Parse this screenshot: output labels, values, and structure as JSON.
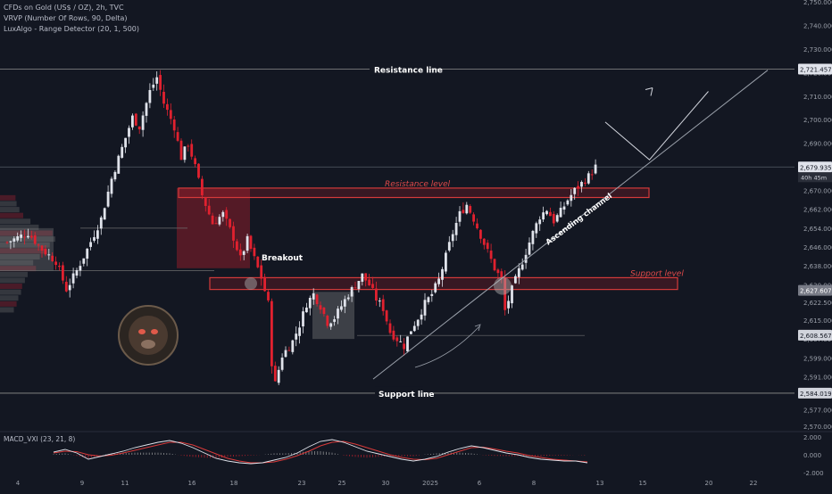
{
  "header": {
    "title": "CFDs on Gold (US$ / OZ), 2h, TVC",
    "indicator_1": "VRVP (Number Of Rows, 90, Delta)",
    "indicator_2": "LuxAlgo - Range Detector (20, 1, 500)"
  },
  "colors": {
    "background": "#131722",
    "up": "#e0e3eb",
    "down": "#e1212f",
    "level_line": "#8f8f8f",
    "red_label": "#e04a4a",
    "price_tag": "#e0e3eb",
    "macd_line": "#e0e3eb",
    "signal_line": "#d93a3a"
  },
  "annotations": {
    "resistance_line": "Resistance line",
    "support_line": "Support line",
    "resistance_level": "Resistance level",
    "support_level": "Support level",
    "breakout": "Breakout",
    "ascending_channel": "Ascending channel"
  },
  "price_tags": {
    "resistance": "2,721.457",
    "current": "2,679.935",
    "countdown": "40h 45m",
    "support_top": "2,627.607",
    "range_low": "2,608.567",
    "support_bottom": "2,584.019"
  },
  "macd": {
    "label": "MACD_VXI (23, 21, 8)",
    "ticks": [
      "2.000",
      "0.000",
      "-2.000"
    ]
  },
  "chart_data": {
    "type": "candlestick",
    "title": "CFDs on Gold (US$ / OZ), 2h, TVC",
    "x_tick_labels": [
      "4",
      "9",
      "11",
      "16",
      "18",
      "23",
      "25",
      "30",
      "2025",
      "6",
      "8",
      "13",
      "15",
      "20",
      "22"
    ],
    "y_tick_labels": [
      "2,750.000",
      "2,740.000",
      "2,730.000",
      "2,720.000",
      "2,710.000",
      "2,700.000",
      "2,690.000",
      "2,680.000",
      "2,670.000",
      "2,662.000",
      "2,654.000",
      "2,646.000",
      "2,638.000",
      "2,630.000",
      "2,622.500",
      "2,615.000",
      "2,607.000",
      "2,599.000",
      "2,591.000",
      "2,584.000",
      "2,577.000",
      "2,570.000"
    ],
    "levels": {
      "resistance_line": 2721.457,
      "resistance_level": [
        2667,
        2671
      ],
      "support_level": [
        2628,
        2633
      ],
      "support_line": 2584.019,
      "current_price": 2679.935
    },
    "close_path": [
      [
        0,
        2648
      ],
      [
        6,
        2652
      ],
      [
        10,
        2645
      ],
      [
        14,
        2640
      ],
      [
        17,
        2628
      ],
      [
        20,
        2636
      ],
      [
        23,
        2645
      ],
      [
        27,
        2658
      ],
      [
        30,
        2675
      ],
      [
        33,
        2688
      ],
      [
        36,
        2701
      ],
      [
        38,
        2697
      ],
      [
        41,
        2712
      ],
      [
        43,
        2718
      ],
      [
        45,
        2707
      ],
      [
        48,
        2697
      ],
      [
        50,
        2684
      ],
      [
        52,
        2690
      ],
      [
        54,
        2680
      ],
      [
        56,
        2668
      ],
      [
        59,
        2656
      ],
      [
        62,
        2660
      ],
      [
        65,
        2650
      ],
      [
        67,
        2641
      ],
      [
        69,
        2649
      ],
      [
        71,
        2641
      ],
      [
        73,
        2633
      ],
      [
        75,
        2622
      ],
      [
        76,
        2597
      ],
      [
        77,
        2588
      ],
      [
        79,
        2600
      ],
      [
        82,
        2606
      ],
      [
        84,
        2613
      ],
      [
        86,
        2622
      ],
      [
        88,
        2626
      ],
      [
        90,
        2621
      ],
      [
        92,
        2614
      ],
      [
        94,
        2616
      ],
      [
        96,
        2621
      ],
      [
        98,
        2626
      ],
      [
        100,
        2630
      ],
      [
        102,
        2634
      ],
      [
        104,
        2630
      ],
      [
        106,
        2624
      ],
      [
        108,
        2620
      ],
      [
        110,
        2610
      ],
      [
        112,
        2607
      ],
      [
        114,
        2604
      ],
      [
        116,
        2611
      ],
      [
        118,
        2616
      ],
      [
        120,
        2622
      ],
      [
        122,
        2626
      ],
      [
        124,
        2632
      ],
      [
        126,
        2642
      ],
      [
        128,
        2652
      ],
      [
        130,
        2660
      ],
      [
        132,
        2664
      ],
      [
        134,
        2658
      ],
      [
        136,
        2651
      ],
      [
        138,
        2644
      ],
      [
        140,
        2637
      ],
      [
        142,
        2632
      ],
      [
        143,
        2619
      ],
      [
        145,
        2628
      ],
      [
        147,
        2636
      ],
      [
        149,
        2644
      ],
      [
        151,
        2652
      ],
      [
        153,
        2659
      ],
      [
        155,
        2662
      ],
      [
        157,
        2657
      ],
      [
        159,
        2661
      ],
      [
        161,
        2666
      ],
      [
        163,
        2670
      ],
      [
        165,
        2673
      ],
      [
        167,
        2676
      ],
      [
        169,
        2680
      ]
    ],
    "projection_path": [
      [
        169,
        2680
      ],
      [
        172,
        2699
      ],
      [
        175,
        2683
      ],
      [
        179,
        2712
      ]
    ],
    "volume_profile_rows": [
      0.28,
      0.3,
      0.35,
      0.42,
      0.55,
      0.7,
      0.95,
      1.0,
      0.9,
      0.85,
      0.72,
      0.6,
      0.65,
      0.5,
      0.45,
      0.4,
      0.38,
      0.33,
      0.3,
      0.25
    ],
    "macd_series": {
      "macd": [
        0.3,
        0.6,
        0.2,
        -0.5,
        -0.2,
        0.1,
        0.4,
        0.8,
        1.1,
        1.4,
        1.6,
        1.3,
        0.8,
        0.2,
        -0.4,
        -0.7,
        -0.9,
        -1.0,
        -0.9,
        -0.6,
        -0.3,
        0.2,
        0.9,
        1.5,
        1.7,
        1.4,
        0.9,
        0.4,
        0.1,
        -0.2,
        -0.5,
        -0.7,
        -0.5,
        -0.2,
        0.3,
        0.7,
        1.0,
        0.8,
        0.5,
        0.2,
        0.0,
        -0.3,
        -0.5,
        -0.6,
        -0.7,
        -0.7,
        -0.9
      ],
      "signal": [
        0.2,
        0.4,
        0.35,
        0.0,
        -0.15,
        -0.05,
        0.2,
        0.5,
        0.8,
        1.1,
        1.4,
        1.4,
        1.1,
        0.6,
        0.1,
        -0.4,
        -0.7,
        -0.9,
        -0.9,
        -0.8,
        -0.5,
        -0.1,
        0.4,
        1.0,
        1.4,
        1.5,
        1.2,
        0.8,
        0.4,
        0.0,
        -0.3,
        -0.5,
        -0.55,
        -0.4,
        0.0,
        0.4,
        0.8,
        0.85,
        0.65,
        0.4,
        0.2,
        -0.1,
        -0.3,
        -0.5,
        -0.6,
        -0.7,
        -0.8
      ]
    },
    "grid": false
  }
}
